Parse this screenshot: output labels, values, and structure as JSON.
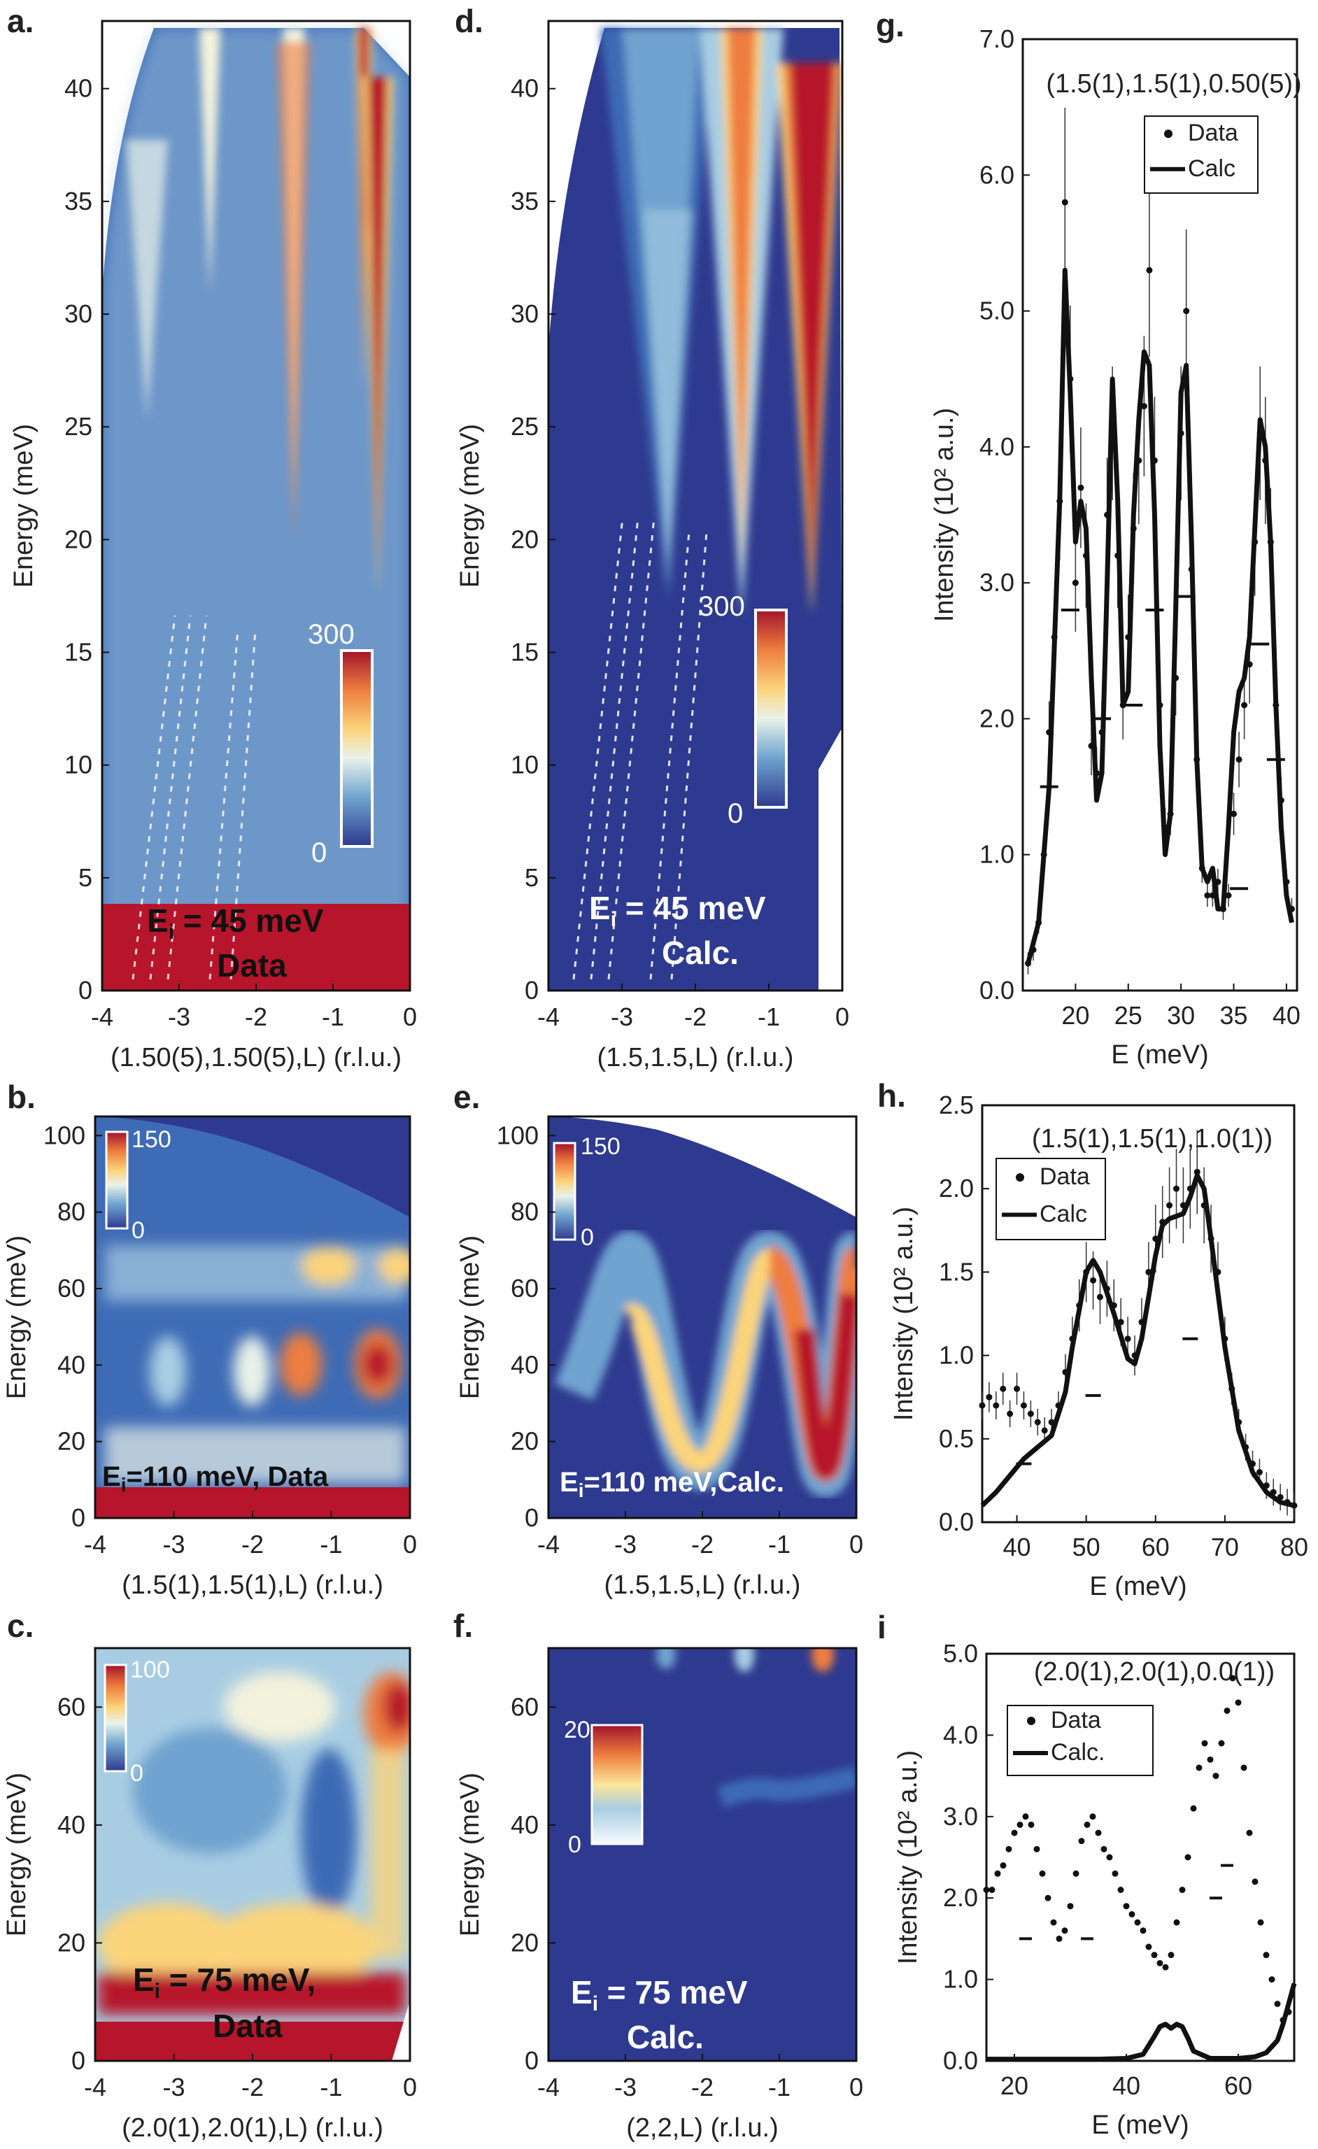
{
  "colors": {
    "dark_blue": "#2e3a8f",
    "mid_blue": "#3e6bb5",
    "light_blue": "#a8cde3",
    "pale": "#f3f2dc",
    "yellow": "#fbd47a",
    "orange": "#ee7d3f",
    "red": "#b7152b",
    "line": "#111111"
  },
  "chart_data": [
    {
      "panel": "a.",
      "type": "heatmap",
      "xlabel": "(1.50(5),1.50(5),L) (r.l.u.)",
      "ylabel": "Energy (meV)",
      "xlim": [
        -4,
        0
      ],
      "ylim": [
        0,
        43
      ],
      "xticks": [
        "-4",
        "-3",
        "-2",
        "-1",
        "0"
      ],
      "yticks": [
        "0",
        "5",
        "10",
        "15",
        "20",
        "25",
        "30",
        "35",
        "40"
      ],
      "colorbar": {
        "max": "300",
        "min": "0"
      },
      "annotation": [
        "E",
        "i",
        " = 45 meV",
        "Data"
      ],
      "dispersion_minima_L": [
        -3.5,
        -2.5,
        -1.5,
        -0.5
      ],
      "min_energy_meV": 18
    },
    {
      "panel": "d.",
      "type": "heatmap",
      "xlabel": "(1.5,1.5,L) (r.l.u.)",
      "ylabel": "Energy (meV)",
      "xlim": [
        -4,
        0
      ],
      "ylim": [
        0,
        43
      ],
      "xticks": [
        "-4",
        "-3",
        "-2",
        "-1",
        "0"
      ],
      "yticks": [
        "0",
        "5",
        "10",
        "15",
        "20",
        "25",
        "30",
        "35",
        "40"
      ],
      "colorbar": {
        "max": "300",
        "min": "0"
      },
      "annotation": [
        "E",
        "i",
        " = 45 meV",
        "Calc."
      ],
      "dispersion_minima_L": [
        -3.5,
        -2.5,
        -1.5,
        -0.5
      ],
      "min_energy_meV": 18
    },
    {
      "panel": "g.",
      "type": "scatter",
      "title": "(1.5(1),1.5(1),0.50(5))",
      "xlabel": "E (meV)",
      "ylabel": "Intensity (10² a.u.)",
      "xlim": [
        15,
        41
      ],
      "ylim": [
        0,
        7
      ],
      "xticks": [
        "20",
        "25",
        "30",
        "35",
        "40"
      ],
      "yticks": [
        "0.0",
        "1.0",
        "2.0",
        "3.0",
        "4.0",
        "5.0",
        "6.0",
        "7.0"
      ],
      "legend": [
        "Data",
        "Calc"
      ],
      "data": {
        "x": [
          15.5,
          16,
          16.5,
          17,
          17.5,
          18,
          18.5,
          19,
          19.5,
          20,
          20.5,
          21,
          21.5,
          22,
          22.5,
          23,
          23.5,
          24,
          24.5,
          25,
          25.5,
          26,
          26.5,
          27,
          27.5,
          28,
          28.5,
          29,
          29.5,
          30,
          30.5,
          31,
          31.5,
          32,
          32.5,
          33,
          33.5,
          34,
          34.5,
          35,
          35.5,
          36,
          36.5,
          37,
          37.5,
          38,
          38.5,
          39,
          39.5,
          40,
          40.5
        ],
        "y": [
          0.2,
          0.3,
          0.5,
          1.0,
          1.9,
          2.6,
          3.6,
          5.8,
          4.5,
          3.0,
          3.7,
          3.2,
          1.8,
          1.6,
          1.9,
          3.5,
          4.1,
          3.2,
          2.1,
          2.6,
          3.4,
          3.9,
          4.3,
          5.3,
          3.9,
          2.1,
          1.2,
          1.3,
          2.3,
          4.1,
          5.0,
          3.1,
          1.7,
          0.9,
          0.7,
          0.7,
          0.8,
          0.6,
          0.7,
          1.3,
          1.7,
          2.1,
          2.4,
          3.3,
          4.1,
          3.9,
          3.3,
          2.1,
          1.4,
          0.8,
          0.6
        ]
      },
      "calc": {
        "x": [
          15.5,
          16.5,
          17.5,
          18.5,
          19,
          19.5,
          20,
          20.5,
          21,
          21.5,
          22,
          22.5,
          23,
          23.5,
          24,
          24.5,
          25,
          25.5,
          26,
          26.5,
          27,
          27.5,
          28,
          28.5,
          29,
          29.5,
          30,
          30.5,
          31,
          31.5,
          32,
          32.5,
          33,
          33.5,
          34,
          34.5,
          35,
          35.5,
          36,
          36.5,
          37,
          37.5,
          38,
          38.5,
          39,
          39.5,
          40,
          40.5
        ],
        "y": [
          0.2,
          0.5,
          1.5,
          3.6,
          5.3,
          4.4,
          3.3,
          3.6,
          3.4,
          2.3,
          1.4,
          1.6,
          3.0,
          4.5,
          3.6,
          2.1,
          2.2,
          3.5,
          4.2,
          4.7,
          4.6,
          3.5,
          1.8,
          1.0,
          1.3,
          2.8,
          4.4,
          4.6,
          3.3,
          1.7,
          0.9,
          0.8,
          0.9,
          0.6,
          0.6,
          1.2,
          1.9,
          2.2,
          2.3,
          2.6,
          3.4,
          4.2,
          4.0,
          3.3,
          2.1,
          1.2,
          0.7,
          0.5
        ]
      },
      "resolution_bars": [
        [
          17.5,
          1.5
        ],
        [
          19.5,
          2.8
        ],
        [
          22.5,
          2.0
        ],
        [
          25.5,
          2.1
        ],
        [
          27.5,
          2.8
        ],
        [
          30.5,
          2.9
        ],
        [
          35.5,
          0.75
        ],
        [
          37.5,
          2.55
        ],
        [
          39,
          1.7
        ]
      ]
    },
    {
      "panel": "b.",
      "type": "heatmap",
      "xlabel": "(1.5(1),1.5(1),L) (r.l.u.)",
      "ylabel": "Energy (meV)",
      "xlim": [
        -4,
        0
      ],
      "ylim": [
        0,
        105
      ],
      "xticks": [
        "-4",
        "-3",
        "-2",
        "-1",
        "0"
      ],
      "yticks": [
        "0",
        "20",
        "40",
        "60",
        "80",
        "100"
      ],
      "colorbar": {
        "max": "150",
        "min": "0"
      },
      "annotation": [
        "E",
        "i",
        "=110 meV, Data"
      ]
    },
    {
      "panel": "e.",
      "type": "heatmap",
      "xlabel": "(1.5,1.5,L) (r.l.u.)",
      "ylabel": "Energy (meV)",
      "xlim": [
        -4,
        0
      ],
      "ylim": [
        0,
        105
      ],
      "xticks": [
        "-4",
        "-3",
        "-2",
        "-1",
        "0"
      ],
      "yticks": [
        "0",
        "20",
        "40",
        "60",
        "80",
        "100"
      ],
      "colorbar": {
        "max": "150",
        "min": "0"
      },
      "annotation": [
        "E",
        "i",
        "=110 meV,Calc."
      ]
    },
    {
      "panel": "h.",
      "type": "scatter",
      "title": "(1.5(1),1.5(1),1.0(1))",
      "xlabel": "E (meV)",
      "ylabel": "Intensity (10² a.u.)",
      "xlim": [
        35,
        80
      ],
      "ylim": [
        0,
        2.5
      ],
      "xticks": [
        "40",
        "50",
        "60",
        "70",
        "80"
      ],
      "yticks": [
        "0.0",
        "0.5",
        "1.0",
        "1.5",
        "2.0",
        "2.5"
      ],
      "legend": [
        "Data",
        "Calc"
      ],
      "data": {
        "x": [
          35,
          36,
          37,
          38,
          39,
          40,
          41,
          42,
          43,
          44,
          45,
          46,
          47,
          48,
          49,
          50,
          51,
          52,
          53,
          54,
          55,
          56,
          57,
          58,
          59,
          60,
          61,
          62,
          63,
          64,
          65,
          66,
          67,
          68,
          69,
          70,
          71,
          72,
          73,
          74,
          75,
          76,
          77,
          78,
          79,
          80
        ],
        "y": [
          0.7,
          0.75,
          0.7,
          0.8,
          0.65,
          0.8,
          0.7,
          0.65,
          0.6,
          0.55,
          0.6,
          0.7,
          0.9,
          1.1,
          1.3,
          1.5,
          1.45,
          1.35,
          1.4,
          1.3,
          1.2,
          1.1,
          1.0,
          1.2,
          1.5,
          1.7,
          1.8,
          1.9,
          2.0,
          1.9,
          2.0,
          2.1,
          1.9,
          1.7,
          1.5,
          1.1,
          0.8,
          0.6,
          0.45,
          0.35,
          0.3,
          0.22,
          0.18,
          0.15,
          0.12,
          0.1
        ]
      },
      "calc": {
        "x": [
          35,
          37,
          39,
          41,
          43,
          45,
          47,
          48,
          50,
          51,
          52,
          54,
          56,
          57,
          58,
          60,
          61,
          62,
          64,
          65,
          66,
          67,
          68,
          70,
          72,
          74,
          76,
          78,
          80
        ],
        "y": [
          0.1,
          0.18,
          0.28,
          0.38,
          0.45,
          0.52,
          0.78,
          1.05,
          1.5,
          1.57,
          1.5,
          1.25,
          0.98,
          0.95,
          1.1,
          1.6,
          1.78,
          1.82,
          1.85,
          1.95,
          2.08,
          2.0,
          1.7,
          1.05,
          0.55,
          0.3,
          0.18,
          0.12,
          0.1
        ]
      },
      "resolution_bars": [
        [
          41,
          0.35
        ],
        [
          51,
          0.76
        ],
        [
          65,
          1.1
        ]
      ]
    },
    {
      "panel": "c.",
      "type": "heatmap",
      "xlabel": "(2.0(1),2.0(1),L) (r.l.u.)",
      "ylabel": "Energy (meV)",
      "xlim": [
        -4,
        0
      ],
      "ylim": [
        0,
        70
      ],
      "xticks": [
        "-4",
        "-3",
        "-2",
        "-1",
        "0"
      ],
      "yticks": [
        "0",
        "20",
        "40",
        "60"
      ],
      "colorbar": {
        "max": "100",
        "min": "0"
      },
      "annotation": [
        "E",
        "i",
        " = 75 meV,",
        "Data"
      ]
    },
    {
      "panel": "f.",
      "type": "heatmap",
      "xlabel": "(2,2,L) (r.l.u.)",
      "ylabel": "Energy (meV)",
      "xlim": [
        -4,
        0
      ],
      "ylim": [
        0,
        70
      ],
      "xticks": [
        "-4",
        "-3",
        "-2",
        "-1",
        "0"
      ],
      "yticks": [
        "0",
        "20",
        "40",
        "60"
      ],
      "colorbar": {
        "max": "20",
        "min": "0"
      },
      "annotation": [
        "E",
        "i",
        " = 75 meV",
        "Calc."
      ]
    },
    {
      "panel": "i",
      "type": "scatter",
      "title": "(2.0(1),2.0(1),0.0(1))",
      "xlabel": "E (meV)",
      "ylabel": "Intensity (10² a.u.)",
      "xlim": [
        15,
        70
      ],
      "ylim": [
        0,
        5
      ],
      "xticks": [
        "20",
        "40",
        "60"
      ],
      "yticks": [
        "0.0",
        "1.0",
        "2.0",
        "3.0",
        "4.0",
        "5.0"
      ],
      "legend": [
        "Data",
        "Calc."
      ],
      "data": {
        "x": [
          15,
          16,
          17,
          18,
          19,
          20,
          21,
          22,
          23,
          24,
          25,
          26,
          27,
          28,
          29,
          30,
          31,
          32,
          33,
          34,
          35,
          36,
          37,
          38,
          39,
          40,
          41,
          42,
          43,
          44,
          45,
          46,
          47,
          48,
          49,
          50,
          51,
          52,
          53,
          54,
          55,
          56,
          57,
          58,
          59,
          60,
          61,
          62,
          63,
          64,
          65,
          66,
          67,
          68,
          69
        ],
        "y": [
          2.1,
          2.1,
          2.3,
          2.4,
          2.6,
          2.8,
          2.9,
          3.0,
          2.9,
          2.6,
          2.3,
          2.0,
          1.7,
          1.5,
          1.6,
          1.9,
          2.3,
          2.7,
          2.9,
          3.0,
          2.8,
          2.6,
          2.5,
          2.3,
          2.1,
          1.9,
          1.8,
          1.7,
          1.6,
          1.4,
          1.3,
          1.2,
          1.15,
          1.3,
          1.7,
          2.1,
          2.5,
          3.1,
          3.6,
          3.9,
          3.7,
          3.5,
          3.9,
          4.3,
          4.7,
          4.4,
          3.6,
          2.8,
          2.2,
          1.7,
          1.3,
          1.0,
          0.7,
          0.5,
          0.6
        ]
      },
      "calc": {
        "x": [
          15,
          20,
          25,
          30,
          35,
          40,
          43,
          45,
          46,
          47,
          48,
          49,
          50,
          51,
          52,
          55,
          60,
          63,
          65,
          67,
          68,
          69,
          70
        ],
        "y": [
          0.02,
          0.02,
          0.02,
          0.02,
          0.02,
          0.03,
          0.08,
          0.3,
          0.42,
          0.45,
          0.4,
          0.45,
          0.42,
          0.28,
          0.12,
          0.03,
          0.03,
          0.05,
          0.1,
          0.25,
          0.45,
          0.7,
          0.95
        ]
      },
      "resolution_bars": [
        [
          22,
          1.5
        ],
        [
          33,
          1.5
        ],
        [
          56,
          2.0
        ],
        [
          58,
          2.4
        ]
      ]
    }
  ]
}
